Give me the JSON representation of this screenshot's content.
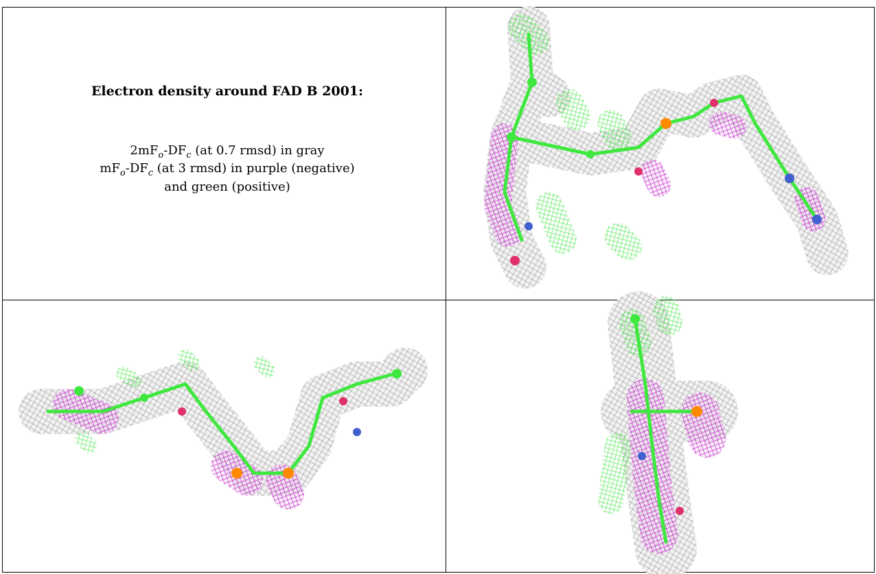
{
  "title": "Electron density around FAD B 2001:",
  "caption": {
    "lines": [
      [
        "2mF",
        "o",
        "-DF",
        "c",
        " (at 0.7 rmsd) in gray"
      ],
      [
        "mF",
        "o",
        "-DF",
        "c",
        " (at 3 rmsd) in purple (negative)"
      ],
      [
        "and green (positive)"
      ]
    ]
  }
}
